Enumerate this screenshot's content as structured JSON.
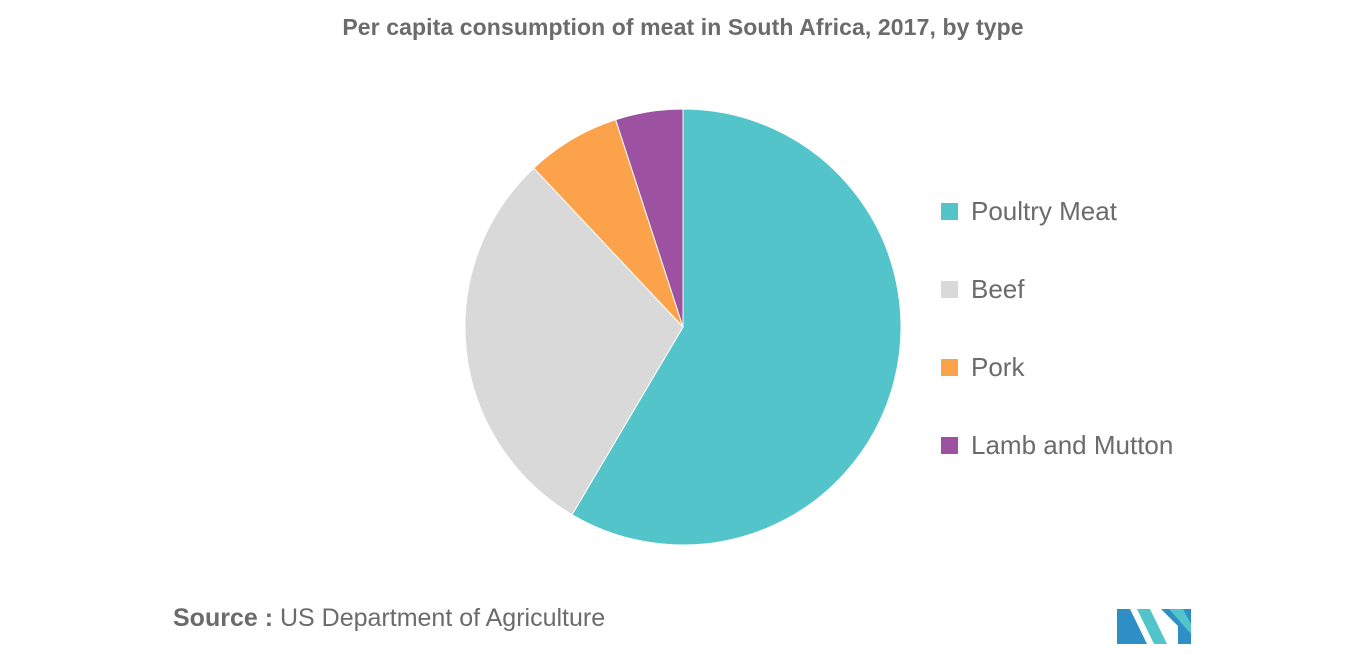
{
  "chart_data": {
    "type": "pie",
    "title": "Per capita consumption of meat in South Africa, 2017, by type",
    "categories": [
      "Poultry Meat",
      "Beef",
      "Pork",
      "Lamb and Mutton"
    ],
    "values": [
      58.5,
      29.5,
      7.0,
      5.0
    ],
    "colors": [
      "#52c4ca",
      "#d9d9d9",
      "#fba24b",
      "#9c52a0"
    ],
    "legend_position": "right",
    "data_labels": false
  },
  "source": {
    "label": "Source :",
    "text": "US Department of Agriculture"
  },
  "logo": {
    "icon": "mordor-intelligence-logo-icon",
    "colors": [
      "#2d8fc4",
      "#52c4ca"
    ]
  }
}
